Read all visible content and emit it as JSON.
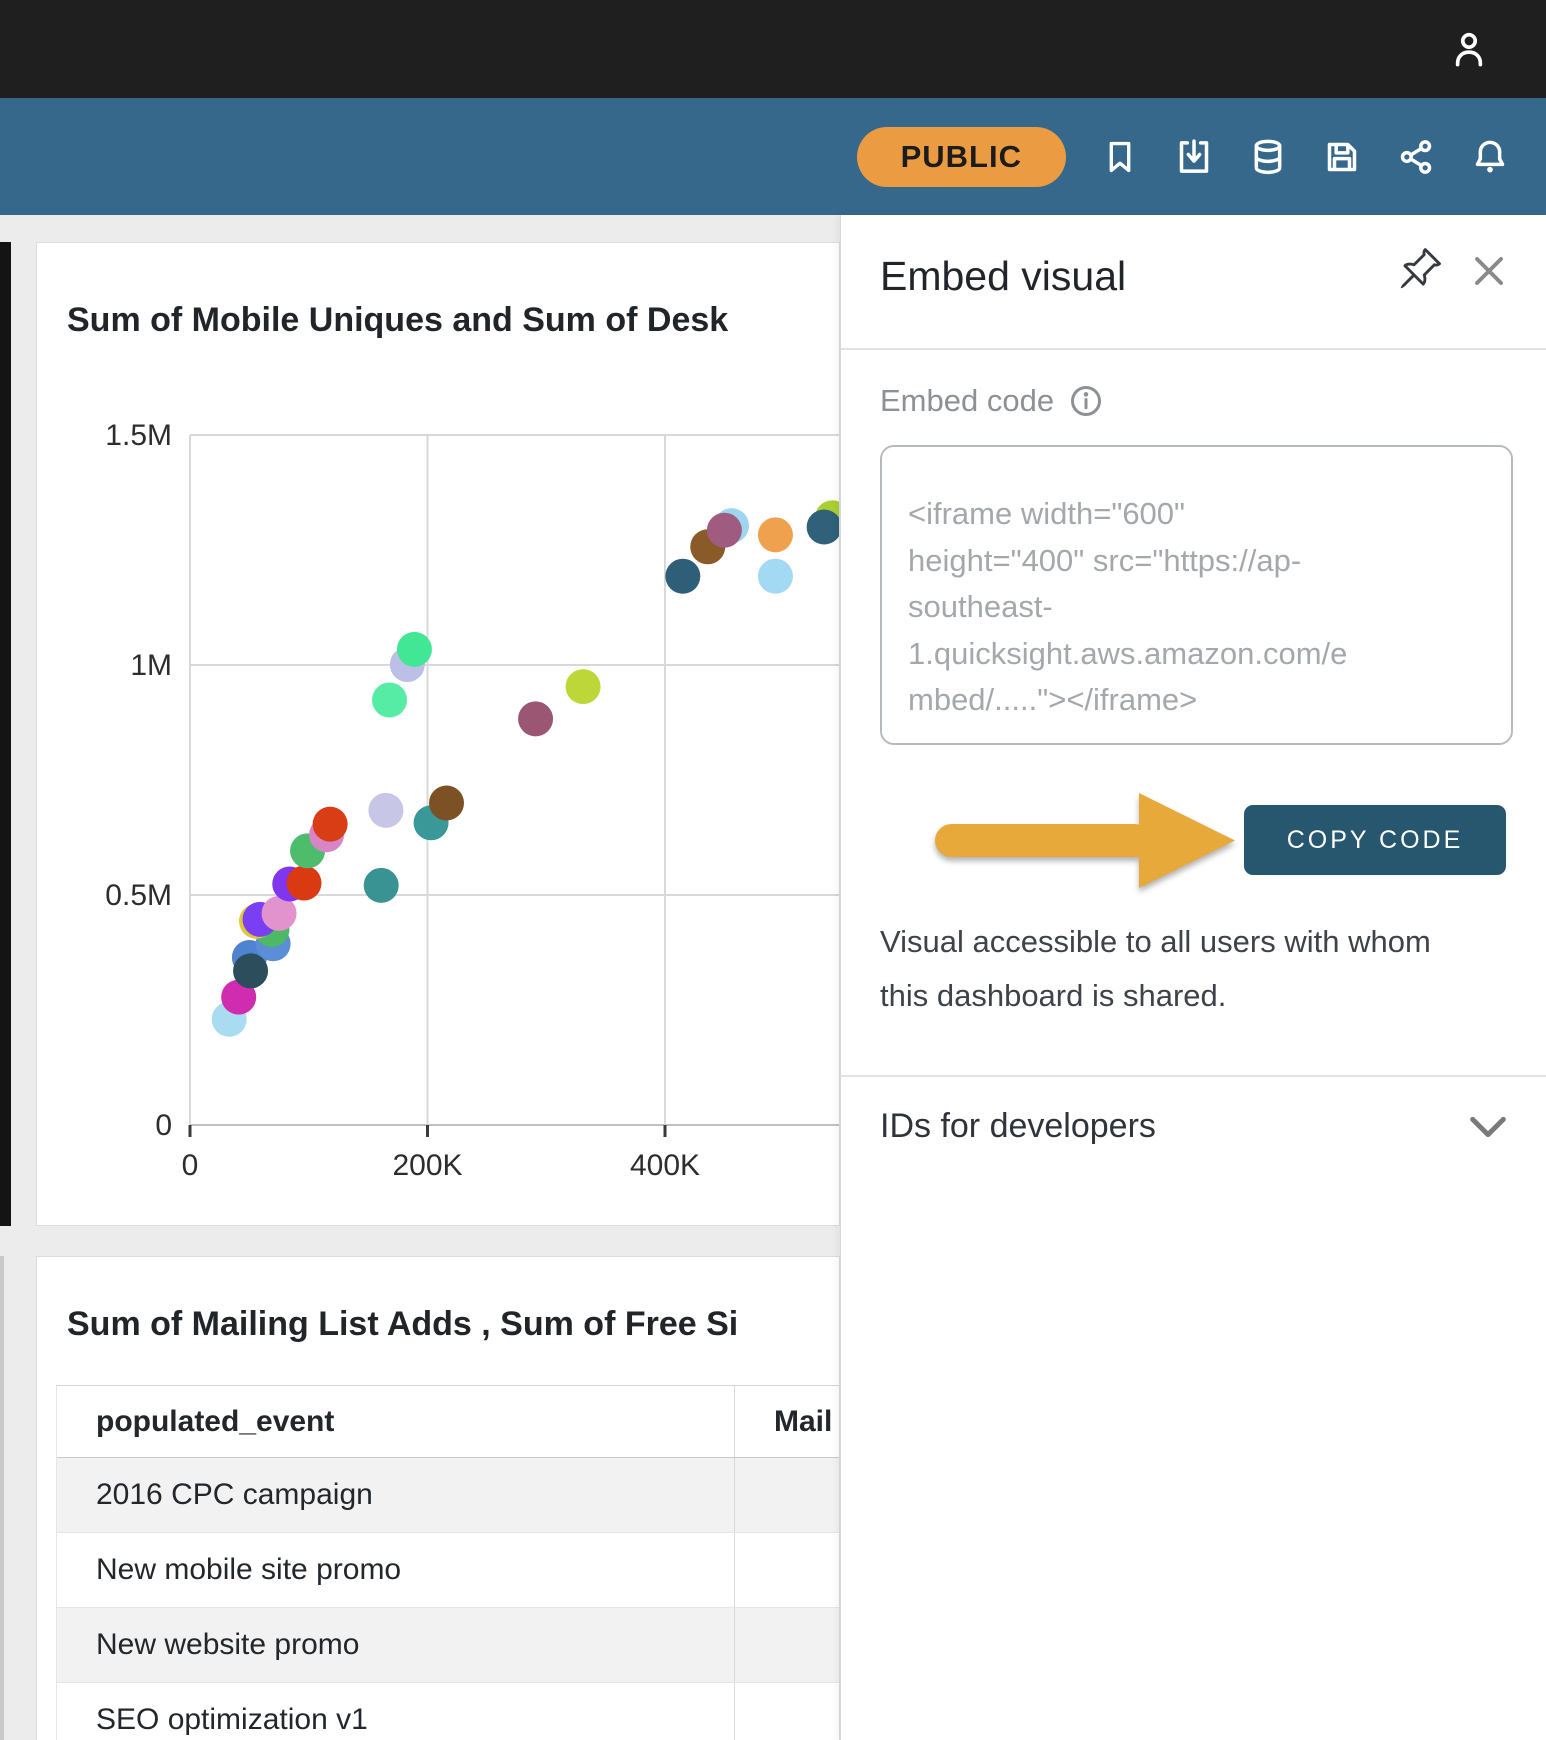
{
  "topbar": {
    "user_icon": "user"
  },
  "toolbar": {
    "public_badge": "PUBLIC",
    "icons": [
      "bookmark",
      "download",
      "database",
      "save",
      "share",
      "notifications"
    ],
    "colors": {
      "topbar": "#1f1f1f",
      "bar": "#36688c",
      "badge": "#eb9c43"
    }
  },
  "chart_card": {
    "title": "Sum of Mobile Uniques and Sum of Desk"
  },
  "chart_data": {
    "type": "scatter",
    "title": "Sum of Mobile Uniques and Sum of Desk",
    "xlabel": "",
    "ylabel": "",
    "xlim": [
      0,
      548000
    ],
    "ylim": [
      0,
      1500000
    ],
    "grid": true,
    "x_ticks": [
      {
        "value": 0,
        "label": "0"
      },
      {
        "value": 200000,
        "label": "200K"
      },
      {
        "value": 400000,
        "label": "400K"
      }
    ],
    "y_ticks": [
      {
        "value": 0,
        "label": "0"
      },
      {
        "value": 500000,
        "label": "0.5M"
      },
      {
        "value": 1000000,
        "label": "1M"
      },
      {
        "value": 1500000,
        "label": "1.5M"
      }
    ],
    "points": [
      {
        "x": 33000,
        "y": 230000,
        "color": "#a9dcf1"
      },
      {
        "x": 41000,
        "y": 278000,
        "color": "#d02cb0"
      },
      {
        "x": 50000,
        "y": 364000,
        "color": "#4f83cf"
      },
      {
        "x": 51000,
        "y": 335000,
        "color": "#2b4d5c"
      },
      {
        "x": 70000,
        "y": 394000,
        "color": "#5b8ed6"
      },
      {
        "x": 69000,
        "y": 425000,
        "color": "#4cb964"
      },
      {
        "x": 56000,
        "y": 443000,
        "color": "#dfc93a"
      },
      {
        "x": 59000,
        "y": 447000,
        "color": "#7a3ff2"
      },
      {
        "x": 75000,
        "y": 460000,
        "color": "#e292cd"
      },
      {
        "x": 84000,
        "y": 524000,
        "color": "#8036ee"
      },
      {
        "x": 96000,
        "y": 526000,
        "color": "#da3a12"
      },
      {
        "x": 99000,
        "y": 596000,
        "color": "#4dbd6d"
      },
      {
        "x": 115000,
        "y": 631000,
        "color": "#d885c5"
      },
      {
        "x": 118000,
        "y": 654000,
        "color": "#d93d15"
      },
      {
        "x": 165000,
        "y": 684000,
        "color": "#c7c6e6"
      },
      {
        "x": 161000,
        "y": 521000,
        "color": "#3a9393"
      },
      {
        "x": 203000,
        "y": 657000,
        "color": "#3a9898"
      },
      {
        "x": 216000,
        "y": 700000,
        "color": "#7c5123"
      },
      {
        "x": 168000,
        "y": 924000,
        "color": "#57eca5"
      },
      {
        "x": 183000,
        "y": 1001000,
        "color": "#bcbfe6"
      },
      {
        "x": 189000,
        "y": 1034000,
        "color": "#41e794"
      },
      {
        "x": 291000,
        "y": 883000,
        "color": "#9b5674"
      },
      {
        "x": 331000,
        "y": 953000,
        "color": "#bdd739"
      },
      {
        "x": 493000,
        "y": 1193000,
        "color": "#a3d9f2"
      },
      {
        "x": 415000,
        "y": 1193000,
        "color": "#2e5e78"
      },
      {
        "x": 436000,
        "y": 1257000,
        "color": "#8a5a29"
      },
      {
        "x": 456000,
        "y": 1303000,
        "color": "#9fd5ee"
      },
      {
        "x": 450000,
        "y": 1293000,
        "color": "#a05c80"
      },
      {
        "x": 493000,
        "y": 1283000,
        "color": "#f0a14e"
      },
      {
        "x": 541000,
        "y": 1320000,
        "color": "#abce32"
      },
      {
        "x": 534000,
        "y": 1300000,
        "color": "#30607a"
      }
    ]
  },
  "table_card": {
    "title": "Sum of Mailing List Adds , Sum of Free Si",
    "columns": [
      "populated_event",
      "Mail"
    ],
    "rows": [
      [
        "2016 CPC campaign",
        ""
      ],
      [
        "New mobile site promo",
        ""
      ],
      [
        "New website promo",
        ""
      ],
      [
        "SEO optimization v1",
        ""
      ]
    ]
  },
  "embed_panel": {
    "title": "Embed visual",
    "embed_code_label": "Embed code",
    "embed_code_placeholder": "<iframe width=\"600\"\nheight=\"400\" src=\"https://ap-\nsoutheast-\n1.quicksight.aws.amazon.com/e\nmbed/.....\"></iframe>",
    "copy_button": "COPY CODE",
    "access_note": "Visual accessible to all users with whom this dashboard is shared.",
    "ids_section": "IDs for developers",
    "colors": {
      "button": "#27566f",
      "arrow": "#e7a93a"
    }
  }
}
